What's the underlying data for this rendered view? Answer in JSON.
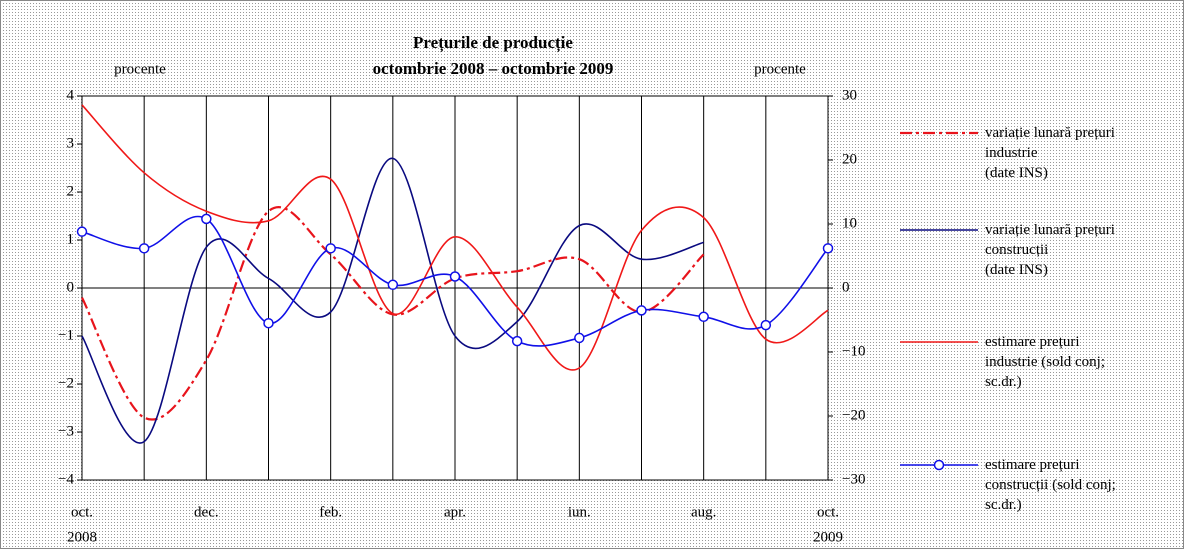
{
  "chart_data": {
    "type": "line",
    "title": "Prețurile de producție",
    "subtitle": "octombrie 2008 – octombrie 2009",
    "ylabel": "procente",
    "y2label": "procente",
    "categories": [
      "oct.",
      null,
      "dec.",
      null,
      "feb.",
      null,
      "apr.",
      null,
      "iun.",
      null,
      "aug.",
      null,
      "oct."
    ],
    "years": [
      "2008",
      "2009"
    ],
    "ylim": [
      -4,
      4
    ],
    "yticks": [
      {
        "value": -4,
        "label": "−4"
      },
      {
        "value": -3,
        "label": "−3"
      },
      {
        "value": -2,
        "label": "−2"
      },
      {
        "value": -1,
        "label": "−1"
      },
      0,
      1,
      2,
      3,
      4
    ],
    "y2lim": [
      -30,
      30
    ],
    "y2ticks": [
      {
        "value": -30,
        "label": "−30"
      },
      {
        "value": -20,
        "label": "−20"
      },
      {
        "value": -10,
        "label": "−10"
      },
      0,
      10,
      20,
      30
    ],
    "grid": true,
    "series": [
      {
        "name": "variație lunară prețuri\nindustrie\n(date INS)",
        "color": "#e8141c",
        "dash": "dashdot",
        "values": [
          -0.2,
          -2.7,
          -1.5,
          1.6,
          0.7,
          -0.55,
          0.2,
          0.35,
          0.6,
          -0.5,
          0.7,
          null,
          null
        ]
      },
      {
        "name": "variație lunară prețuri\nconstrucții\n(date INS)",
        "color": "#0a0a80",
        "values": [
          -1.0,
          -3.2,
          0.85,
          0.2,
          -0.5,
          2.7,
          -1.0,
          -0.7,
          1.3,
          0.6,
          0.95,
          null,
          null
        ]
      },
      {
        "name": "estimare prețuri\nindustrie (sold conj;\nsc.dr.)",
        "color": "#f01818",
        "axis": "y2",
        "values": [
          28.6,
          18,
          12,
          10.5,
          17,
          -4,
          8,
          -3,
          -12.5,
          9,
          11,
          -8,
          -3.5
        ]
      },
      {
        "name": "estimare prețuri\nconstrucții (sold conj;\nsc.dr.)",
        "color": "#1010e8",
        "axis": "y2",
        "marker": "circle",
        "values": [
          8.8,
          6.2,
          10.8,
          -5.5,
          6.2,
          0.5,
          1.8,
          -8.3,
          -7.8,
          -3.5,
          -4.5,
          -5.8,
          6.2
        ]
      }
    ]
  }
}
